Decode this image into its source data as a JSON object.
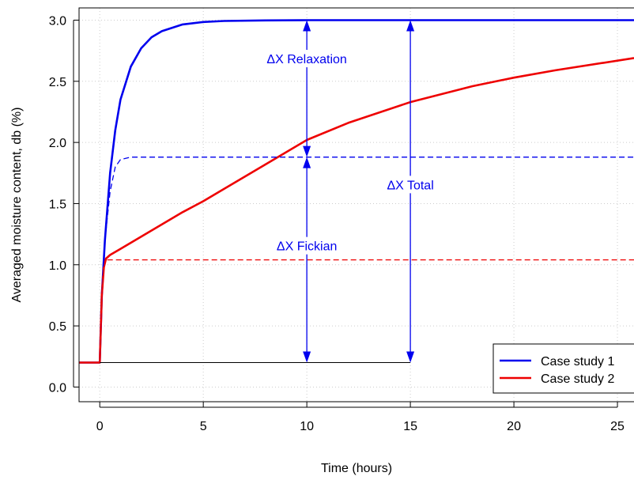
{
  "chart_data": {
    "type": "line",
    "xlabel": "Time (hours)",
    "ylabel": "Averaged moisture content, db (%)",
    "xlim": [
      -1,
      25.8
    ],
    "ylim": [
      -0.12,
      3.1
    ],
    "xticks": [
      0,
      5,
      10,
      15,
      20,
      25
    ],
    "yticks": [
      "0.0",
      "0.5",
      "1.0",
      "1.5",
      "2.0",
      "2.5",
      "3.0"
    ],
    "grid": true,
    "legend": {
      "position": "bottom-right",
      "entries": [
        "Case study 1",
        "Case study 2"
      ]
    },
    "series": [
      {
        "name": "Case study 1",
        "color": "#0000ee",
        "style": "solid",
        "x": [
          -1,
          -0.05,
          0,
          0.1,
          0.25,
          0.5,
          0.75,
          1,
          1.5,
          2,
          2.5,
          3,
          4,
          5,
          6,
          8,
          10,
          15,
          20,
          25.8
        ],
        "y": [
          0.2,
          0.2,
          0.2,
          0.75,
          1.2,
          1.75,
          2.1,
          2.35,
          2.62,
          2.77,
          2.86,
          2.91,
          2.965,
          2.985,
          2.993,
          2.998,
          3.0,
          3.0,
          3.0,
          3.0
        ]
      },
      {
        "name": "Case study 2",
        "color": "#ee0000",
        "style": "solid",
        "x": [
          -1,
          -0.05,
          0,
          0.1,
          0.2,
          0.3,
          0.5,
          1,
          2,
          3,
          4,
          5,
          6,
          8,
          10,
          12,
          15,
          18,
          20,
          22,
          25.8
        ],
        "y": [
          0.2,
          0.2,
          0.2,
          0.75,
          0.98,
          1.05,
          1.08,
          1.13,
          1.23,
          1.33,
          1.43,
          1.52,
          1.62,
          1.82,
          2.02,
          2.16,
          2.33,
          2.46,
          2.53,
          2.59,
          2.69
        ]
      },
      {
        "color": "#0000ee",
        "style": "dashed",
        "x": [
          0,
          0.1,
          0.25,
          0.5,
          0.75,
          1,
          1.5,
          2,
          3,
          5,
          10,
          25.8
        ],
        "y": [
          0.2,
          0.75,
          1.2,
          1.6,
          1.8,
          1.86,
          1.88,
          1.88,
          1.88,
          1.88,
          1.88,
          1.88
        ]
      },
      {
        "color": "#ee0000",
        "style": "dashed",
        "x": [
          0,
          0.1,
          0.2,
          0.3,
          1,
          5,
          25.8
        ],
        "y": [
          0.2,
          0.75,
          0.98,
          1.04,
          1.04,
          1.04,
          1.04
        ]
      },
      {
        "color": "#0000ee",
        "style": "dashed",
        "x": [
          10,
          25.8
        ],
        "y": [
          3.0,
          3.0
        ]
      },
      {
        "color": "#000000",
        "style": "solid",
        "x": [
          0,
          15
        ],
        "y": [
          0.2,
          0.2
        ]
      }
    ],
    "arrows": [
      {
        "x": 10,
        "y_from": 3.0,
        "y_to": 1.88,
        "label": "ΔX Relaxation",
        "label_x": 10,
        "label_y": 2.66,
        "color": "#0000ee"
      },
      {
        "x": 10,
        "y_from": 1.88,
        "y_to": 0.2,
        "label": "ΔX Fickian",
        "label_x": 10,
        "label_y": 1.13,
        "color": "#0000ee"
      },
      {
        "x": 15,
        "y_from": 3.0,
        "y_to": 0.2,
        "label": "ΔX Total",
        "label_x": 15,
        "label_y": 1.63,
        "color": "#0000ee"
      }
    ]
  }
}
